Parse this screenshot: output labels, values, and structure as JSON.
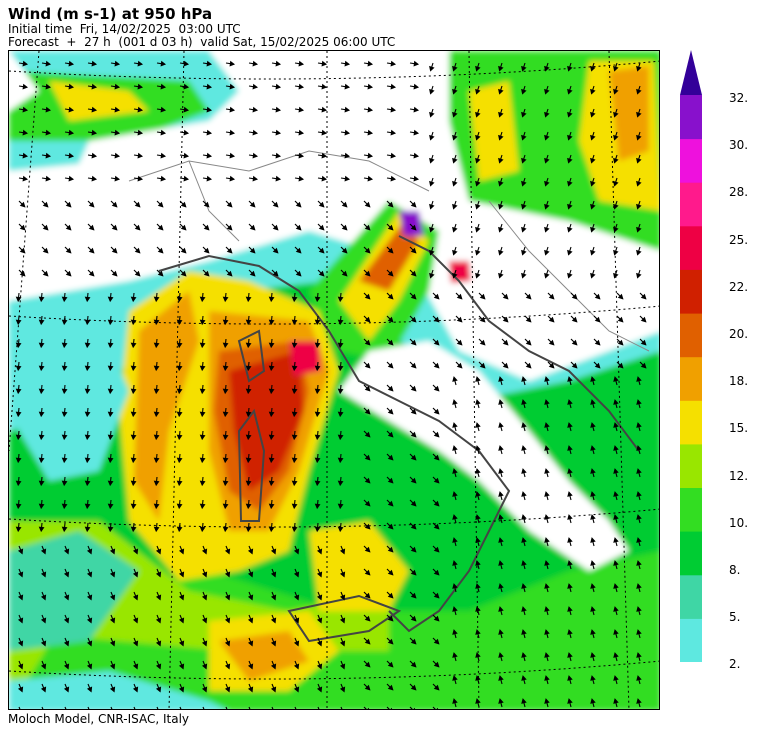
{
  "header": {
    "title": "Wind (m s-1) at 950 hPa",
    "initial_time": "Initial time  Fri, 14/02/2025  03:00 UTC",
    "forecast": "Forecast  +  27 h  (001 d 03 h)  valid Sat, 15/02/2025 06:00 UTC"
  },
  "footer": {
    "credit": "Moloch Model, CNR-ISAC, Italy"
  },
  "legend": {
    "labels": [
      "32.",
      "30.",
      "28.",
      "25.",
      "22.",
      "20.",
      "18.",
      "15.",
      "12.",
      "10.",
      "8.",
      "5.",
      "2."
    ],
    "colors_bottom_to_top": [
      "#5ee8e0",
      "#3fd6a5",
      "#00cc33",
      "#33dd22",
      "#99e600",
      "#f5e000",
      "#f0a000",
      "#e06000",
      "#d02000",
      "#ee0044",
      "#ff1a8c",
      "#ee11dd",
      "#8811cc"
    ],
    "overflow_color": "#330099"
  },
  "map": {
    "projection_grid": "dotted",
    "field_colors": {
      "land": "#ffffff",
      "coast": "#444444",
      "borders": "#888888",
      "arrows": "#000000"
    }
  }
}
